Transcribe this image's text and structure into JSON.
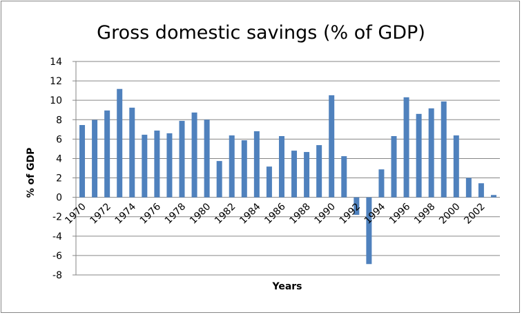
{
  "chart_data": {
    "type": "bar",
    "title": "Gross domestic savings (% of GDP)",
    "xlabel": "Years",
    "ylabel": "% of GDP",
    "ylim": [
      -8,
      14
    ],
    "yticks": [
      -8,
      -6,
      -4,
      -2,
      0,
      2,
      4,
      6,
      8,
      10,
      12,
      14
    ],
    "grid": true,
    "legend": "none",
    "bar_color": "#4F81BD",
    "categories": [
      "1970",
      "1971",
      "1972",
      "1973",
      "1974",
      "1975",
      "1976",
      "1977",
      "1978",
      "1979",
      "1980",
      "1981",
      "1982",
      "1983",
      "1984",
      "1985",
      "1986",
      "1987",
      "1988",
      "1989",
      "1990",
      "1991",
      "1992",
      "1993",
      "1994",
      "1995",
      "1996",
      "1997",
      "1998",
      "1999",
      "2000",
      "2001",
      "2002",
      "2003"
    ],
    "tick_labels": [
      "1970",
      "1972",
      "1974",
      "1976",
      "1978",
      "1980",
      "1982",
      "1984",
      "1986",
      "1988",
      "1990",
      "1992",
      "1994",
      "1996",
      "1998",
      "2000",
      "2002"
    ],
    "values": [
      7.45,
      7.98,
      8.95,
      11.17,
      9.24,
      6.45,
      6.88,
      6.6,
      7.88,
      8.74,
      8.0,
      3.74,
      6.38,
      5.88,
      6.81,
      3.17,
      6.31,
      4.81,
      4.67,
      5.38,
      10.52,
      4.24,
      -1.81,
      -6.88,
      2.88,
      6.31,
      10.31,
      8.6,
      9.17,
      9.88,
      6.38,
      2.0,
      1.45,
      0.24
    ]
  }
}
